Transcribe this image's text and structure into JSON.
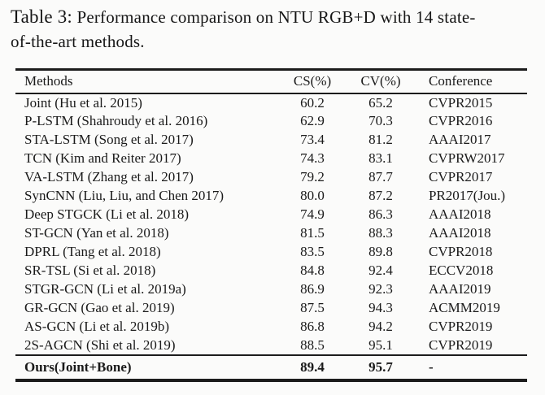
{
  "page": {
    "background": "#fbfbfa",
    "text_color": "#161616",
    "rule_color": "#1c1c1c"
  },
  "caption": {
    "label": "Table 3:",
    "line1_rest": "Performance comparison on NTU RGB+D with 14 state-",
    "line2": "of-the-art methods."
  },
  "table": {
    "headers": {
      "methods": "Methods",
      "cs": "CS(%)",
      "cv": "CV(%)",
      "conference": "Conference"
    },
    "rows": [
      {
        "method": "Joint (Hu et al. 2015)",
        "cs": "60.2",
        "cv": "65.2",
        "conference": "CVPR2015"
      },
      {
        "method": "P-LSTM (Shahroudy et al. 2016)",
        "cs": "62.9",
        "cv": "70.3",
        "conference": "CVPR2016"
      },
      {
        "method": "STA-LSTM (Song et al. 2017)",
        "cs": "73.4",
        "cv": "81.2",
        "conference": "AAAI2017"
      },
      {
        "method": "TCN (Kim and Reiter 2017)",
        "cs": "74.3",
        "cv": "83.1",
        "conference": "CVPRW2017"
      },
      {
        "method": "VA-LSTM (Zhang et al. 2017)",
        "cs": "79.2",
        "cv": "87.7",
        "conference": "CVPR2017"
      },
      {
        "method": "SynCNN (Liu, Liu, and Chen 2017)",
        "cs": "80.0",
        "cv": "87.2",
        "conference": "PR2017(Jou.)"
      },
      {
        "method": "Deep STGCK (Li et al. 2018)",
        "cs": "74.9",
        "cv": "86.3",
        "conference": "AAAI2018"
      },
      {
        "method": "ST-GCN (Yan et al. 2018)",
        "cs": "81.5",
        "cv": "88.3",
        "conference": "AAAI2018"
      },
      {
        "method": "DPRL (Tang et al. 2018)",
        "cs": "83.5",
        "cv": "89.8",
        "conference": "CVPR2018"
      },
      {
        "method": "SR-TSL (Si et al. 2018)",
        "cs": "84.8",
        "cv": "92.4",
        "conference": "ECCV2018"
      },
      {
        "method": "STGR-GCN (Li et al. 2019a)",
        "cs": "86.9",
        "cv": "92.3",
        "conference": "AAAI2019"
      },
      {
        "method": "GR-GCN (Gao et al. 2019)",
        "cs": "87.5",
        "cv": "94.3",
        "conference": "ACMM2019"
      },
      {
        "method": "AS-GCN (Li et al. 2019b)",
        "cs": "86.8",
        "cv": "94.2",
        "conference": "CVPR2019"
      },
      {
        "method": "2S-AGCN (Shi et al. 2019)",
        "cs": "88.5",
        "cv": "95.1",
        "conference": "CVPR2019"
      }
    ],
    "footer": {
      "method": "Ours(Joint+Bone)",
      "cs": "89.4",
      "cv": "95.7",
      "conference": "-"
    }
  }
}
